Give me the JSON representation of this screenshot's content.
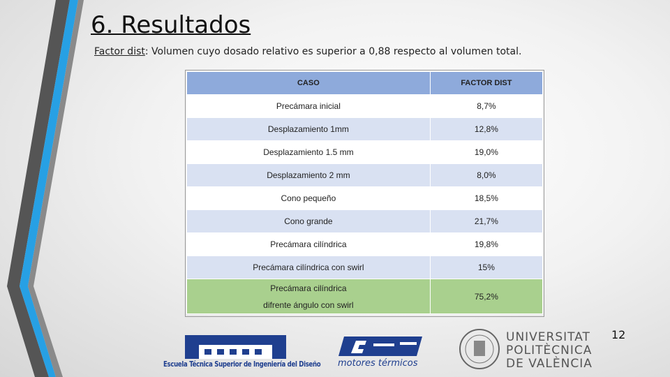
{
  "slide": {
    "title": "6. Resultados",
    "subtitle": {
      "term": "Factor dist",
      "text": ": Volumen cuyo dosado relativo es superior a 0,88 respecto al volumen total."
    },
    "table": {
      "headers": [
        "CASO",
        "FACTOR DIST"
      ],
      "rows": [
        [
          "Precámara inicial",
          "8,7%"
        ],
        [
          "Desplazamiento 1mm",
          "12,8%"
        ],
        [
          "Desplazamiento 1.5 mm",
          "19,0%"
        ],
        [
          "Desplazamiento 2 mm",
          "8,0%"
        ],
        [
          "Cono pequeño",
          "18,5%"
        ],
        [
          "Cono grande",
          "21,7%"
        ],
        [
          "Precámara cilíndrica",
          "19,8%"
        ],
        [
          "Precámara cilíndrica con swirl",
          "15%"
        ],
        [
          "Precámara cilíndrica\ndifrente ángulo con swirl",
          "75,2%"
        ]
      ]
    },
    "page_number": "12",
    "logos": {
      "etsid": "Escuela Técnica Superior de Ingeniería del Diseño",
      "cmt": "motores térmicos",
      "upv": [
        "UNIVERSITAT",
        "POLITÈCNICA",
        "DE VALÈNCIA"
      ]
    }
  }
}
